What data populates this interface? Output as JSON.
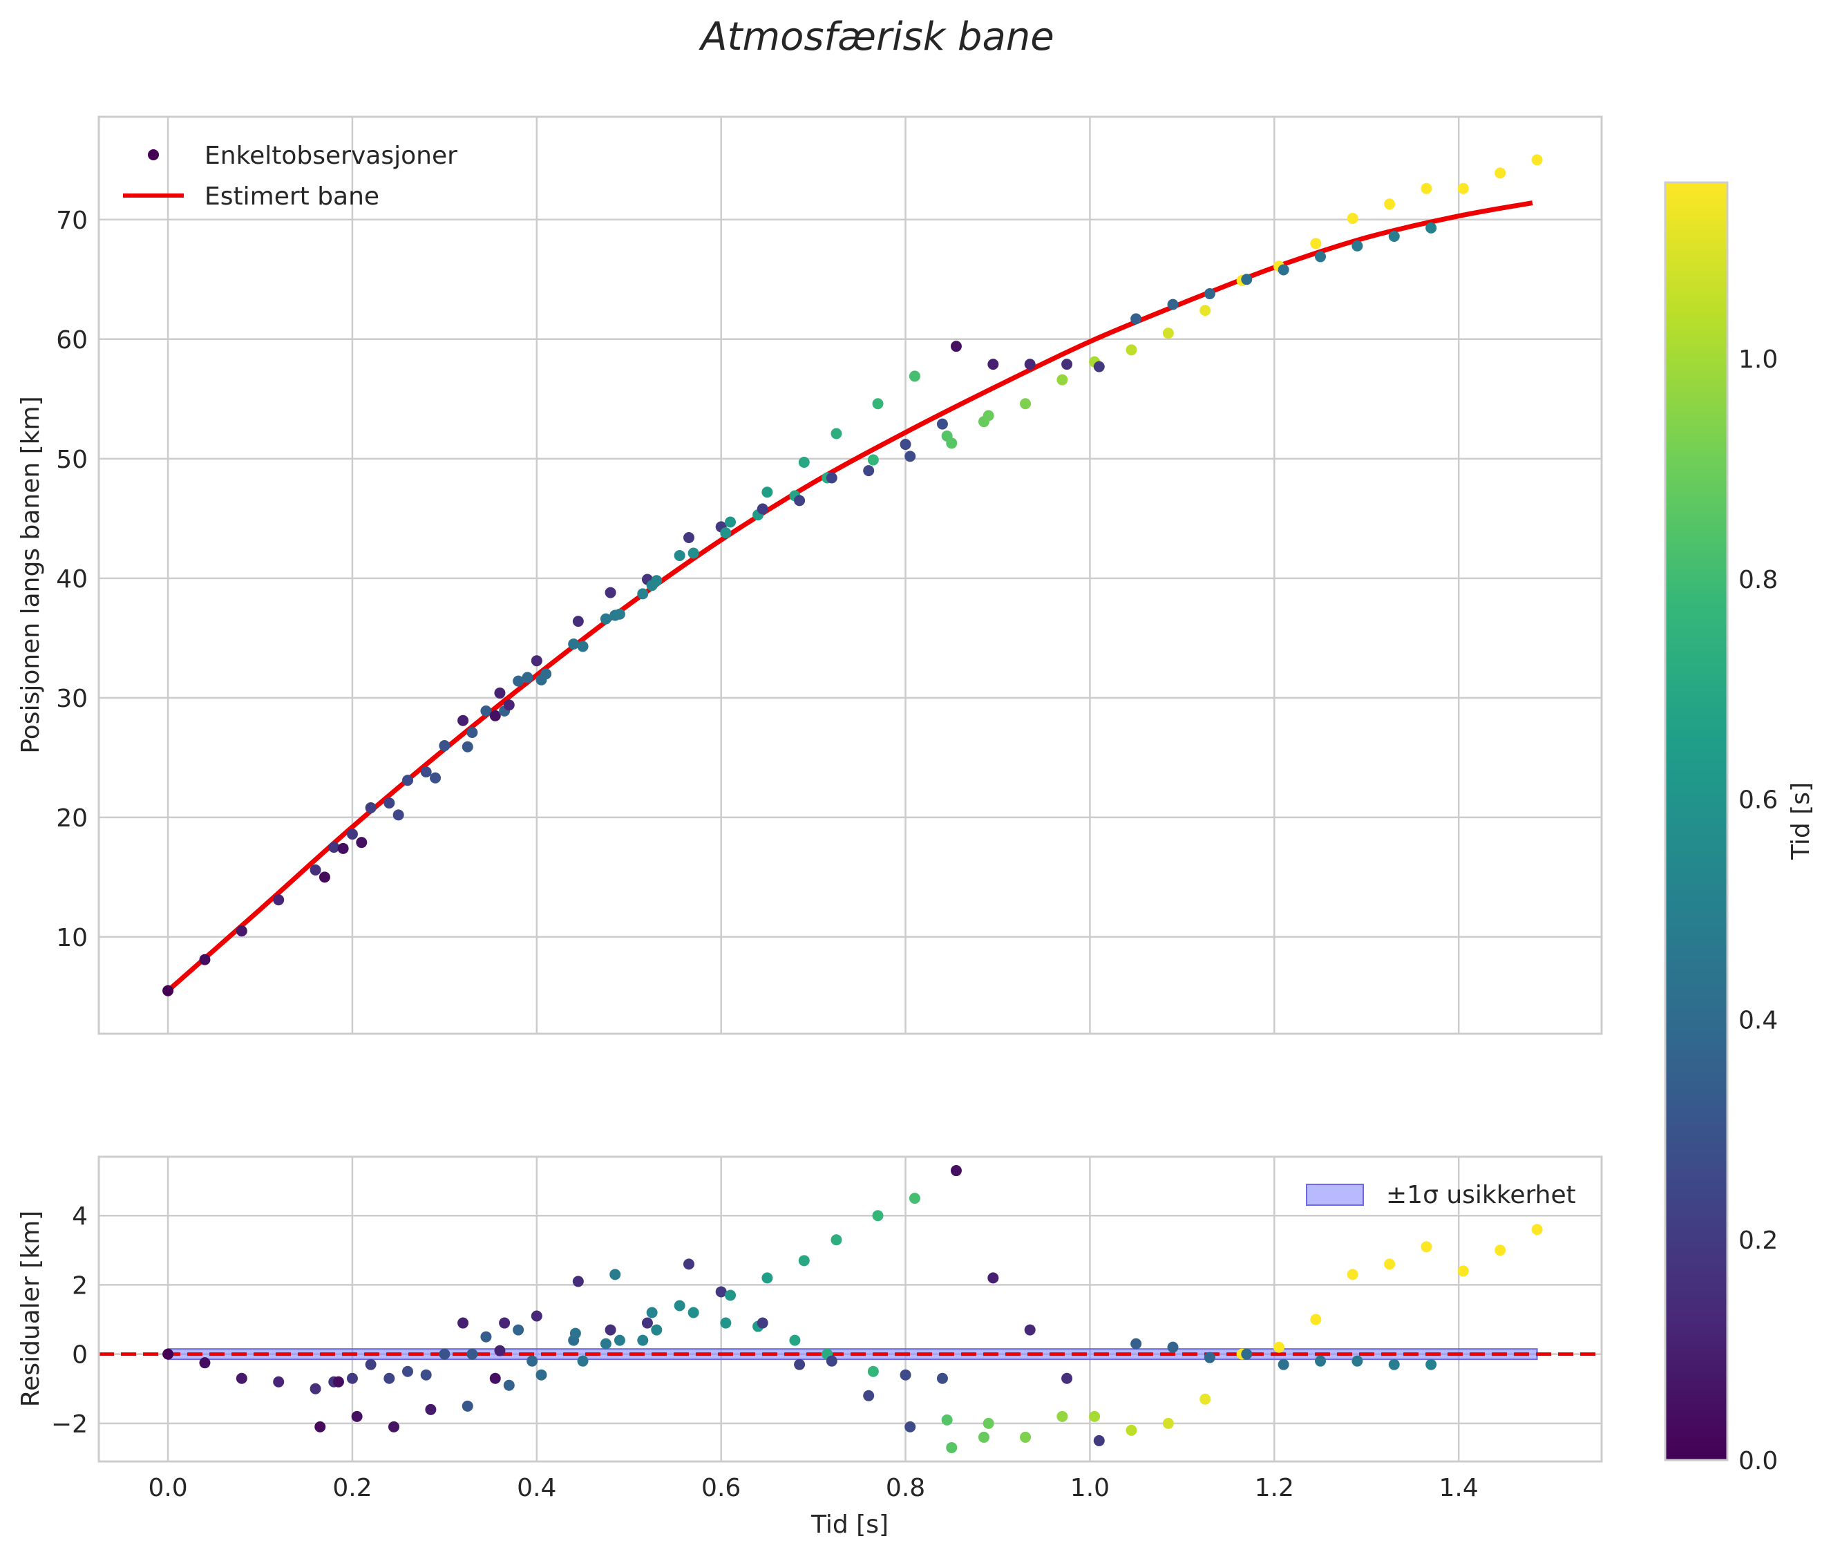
{
  "chart_data": [
    {
      "type": "scatter",
      "title": "Atmosfærisk bane",
      "xlabel": "",
      "ylabel": "Posisjonen langs banen [km]",
      "xlim": [
        -0.075,
        1.555
      ],
      "ylim": [
        1.9,
        78.6
      ],
      "xticks": [
        0.0,
        0.2,
        0.4,
        0.6,
        0.8,
        1.0,
        1.2,
        1.4
      ],
      "yticks": [
        10,
        20,
        30,
        40,
        50,
        60,
        70
      ],
      "ytick_labels": [
        "10",
        "20",
        "30",
        "40",
        "50",
        "60",
        "70"
      ],
      "legend": {
        "position": "top-left",
        "entries": [
          "Enkeltobservasjoner",
          "Estimert bane"
        ]
      },
      "fit_curve": {
        "name": "Estimert bane",
        "color": "#ee0000",
        "x": [
          0.0,
          0.1,
          0.2,
          0.3,
          0.4,
          0.5,
          0.6,
          0.7,
          0.8,
          0.9,
          1.0,
          1.1,
          1.2,
          1.3,
          1.4,
          1.48
        ],
        "y": [
          5.5,
          12.3,
          19.2,
          25.7,
          31.9,
          37.8,
          43.2,
          48.0,
          52.2,
          56.1,
          59.8,
          63.0,
          66.0,
          68.5,
          70.3,
          71.4
        ]
      },
      "observations": {
        "name": "Enkeltobservasjoner",
        "x": [
          0.0,
          0.04,
          0.08,
          0.12,
          0.16,
          0.17,
          0.18,
          0.19,
          0.2,
          0.21,
          0.22,
          0.24,
          0.25,
          0.26,
          0.28,
          0.29,
          0.3,
          0.32,
          0.325,
          0.33,
          0.345,
          0.355,
          0.36,
          0.365,
          0.37,
          0.38,
          0.39,
          0.4,
          0.405,
          0.41,
          0.44,
          0.445,
          0.45,
          0.475,
          0.48,
          0.485,
          0.49,
          0.515,
          0.52,
          0.525,
          0.53,
          0.555,
          0.565,
          0.57,
          0.6,
          0.605,
          0.61,
          0.64,
          0.645,
          0.65,
          0.68,
          0.685,
          0.69,
          0.715,
          0.72,
          0.725,
          0.76,
          0.765,
          0.77,
          0.8,
          0.805,
          0.81,
          0.84,
          0.845,
          0.85,
          0.855,
          0.885,
          0.89,
          0.895,
          0.93,
          0.935,
          0.97,
          0.975,
          1.005,
          1.01,
          1.045,
          1.05,
          1.085,
          1.09,
          1.125,
          1.13,
          1.165,
          1.17,
          1.205,
          1.21,
          1.245,
          1.25,
          1.285,
          1.29,
          1.325,
          1.33,
          1.365,
          1.37,
          1.405,
          1.445,
          1.485
        ],
        "y": [
          5.5,
          8.1,
          10.5,
          13.1,
          15.6,
          15.0,
          17.5,
          17.4,
          18.6,
          17.9,
          20.8,
          21.2,
          20.2,
          23.1,
          23.8,
          23.3,
          26.0,
          28.1,
          25.9,
          27.1,
          28.9,
          28.5,
          30.4,
          28.9,
          29.4,
          31.4,
          31.7,
          33.1,
          31.5,
          32.0,
          34.5,
          36.4,
          34.3,
          36.6,
          38.8,
          36.9,
          37.0,
          38.7,
          39.9,
          39.4,
          39.8,
          41.9,
          43.4,
          42.1,
          44.3,
          43.8,
          44.7,
          45.3,
          45.8,
          47.2,
          46.9,
          46.5,
          49.7,
          48.4,
          48.4,
          52.1,
          49.0,
          49.9,
          54.6,
          51.2,
          50.2,
          56.9,
          52.9,
          51.9,
          51.3,
          59.4,
          53.1,
          53.6,
          57.9,
          54.6,
          57.9,
          56.6,
          57.9,
          58.1,
          57.7,
          59.1,
          61.7,
          60.5,
          62.9,
          62.4,
          63.8,
          64.9,
          65.0,
          66.1,
          65.8,
          68.0,
          66.9,
          70.1,
          67.8,
          71.3,
          68.6,
          72.6,
          69.3,
          72.6,
          73.9,
          75.0
        ],
        "c": [
          0.0,
          0.04,
          0.08,
          0.12,
          0.16,
          0.03,
          0.18,
          0.04,
          0.2,
          0.05,
          0.22,
          0.24,
          0.25,
          0.26,
          0.28,
          0.29,
          0.3,
          0.1,
          0.32,
          0.33,
          0.345,
          0.05,
          0.11,
          0.365,
          0.12,
          0.38,
          0.39,
          0.13,
          0.405,
          0.41,
          0.44,
          0.15,
          0.45,
          0.475,
          0.16,
          0.485,
          0.49,
          0.515,
          0.17,
          0.525,
          0.53,
          0.555,
          0.19,
          0.57,
          0.2,
          0.605,
          0.61,
          0.64,
          0.21,
          0.65,
          0.68,
          0.23,
          0.69,
          0.715,
          0.24,
          0.725,
          0.25,
          0.765,
          0.77,
          0.26,
          0.27,
          0.81,
          0.28,
          0.845,
          0.85,
          0.05,
          0.885,
          0.89,
          0.1,
          0.93,
          0.13,
          0.97,
          0.16,
          1.005,
          0.2,
          1.045,
          0.35,
          1.085,
          0.37,
          1.125,
          0.39,
          1.165,
          0.41,
          1.205,
          0.43,
          1.245,
          0.45,
          1.285,
          0.47,
          1.325,
          0.49,
          1.365,
          0.51,
          1.405,
          1.445,
          1.16
        ]
      }
    },
    {
      "type": "scatter",
      "title": "",
      "xlabel": "Tid [s]",
      "ylabel": "Residualer [km]",
      "xlim": [
        -0.075,
        1.555
      ],
      "ylim": [
        -3.1,
        5.7
      ],
      "xticks": [
        0.0,
        0.2,
        0.4,
        0.6,
        0.8,
        1.0,
        1.2,
        1.4
      ],
      "xtick_labels": [
        "0.0",
        "0.2",
        "0.4",
        "0.6",
        "0.8",
        "1.0",
        "1.2",
        "1.4"
      ],
      "yticks": [
        -2,
        0,
        2,
        4
      ],
      "ytick_labels": [
        "−2",
        "0",
        "2",
        "4"
      ],
      "legend": {
        "position": "top-right",
        "entries": [
          "±1σ usikkerhet"
        ]
      },
      "zero_line": {
        "y": 0,
        "color": "#ee0000",
        "style": "dashed"
      },
      "uncertainty_band": {
        "name": "±1σ usikkerhet",
        "sigma": 0.15,
        "color": "#8080ff"
      },
      "residuals": {
        "x": [
          0.0,
          0.04,
          0.08,
          0.12,
          0.16,
          0.165,
          0.18,
          0.185,
          0.2,
          0.205,
          0.22,
          0.24,
          0.245,
          0.26,
          0.28,
          0.285,
          0.3,
          0.32,
          0.325,
          0.33,
          0.345,
          0.355,
          0.36,
          0.365,
          0.37,
          0.38,
          0.395,
          0.4,
          0.405,
          0.44,
          0.442,
          0.445,
          0.45,
          0.475,
          0.48,
          0.485,
          0.49,
          0.515,
          0.52,
          0.525,
          0.53,
          0.555,
          0.565,
          0.57,
          0.6,
          0.605,
          0.61,
          0.64,
          0.645,
          0.65,
          0.68,
          0.685,
          0.69,
          0.715,
          0.72,
          0.725,
          0.76,
          0.765,
          0.77,
          0.8,
          0.805,
          0.81,
          0.84,
          0.845,
          0.85,
          0.855,
          0.885,
          0.89,
          0.895,
          0.93,
          0.935,
          0.97,
          0.975,
          1.005,
          1.01,
          1.045,
          1.05,
          1.085,
          1.09,
          1.125,
          1.13,
          1.165,
          1.17,
          1.205,
          1.21,
          1.245,
          1.25,
          1.285,
          1.29,
          1.325,
          1.33,
          1.365,
          1.37,
          1.405,
          1.445,
          1.485
        ],
        "y": [
          0.0,
          -0.25,
          -0.7,
          -0.8,
          -1.0,
          -2.1,
          -0.8,
          -0.8,
          -0.7,
          -1.8,
          -0.3,
          -0.7,
          -2.1,
          -0.5,
          -0.6,
          -1.6,
          0.0,
          0.9,
          -1.5,
          0.0,
          0.5,
          -0.7,
          0.1,
          0.9,
          -0.9,
          0.7,
          -0.2,
          1.1,
          -0.6,
          0.4,
          0.6,
          2.1,
          -0.2,
          0.3,
          0.7,
          2.3,
          0.4,
          0.4,
          0.9,
          1.2,
          0.7,
          1.4,
          2.6,
          1.2,
          1.8,
          0.9,
          1.7,
          0.8,
          0.9,
          2.2,
          0.4,
          -0.3,
          2.7,
          0.0,
          -0.2,
          3.3,
          -1.2,
          -0.5,
          4.0,
          -0.6,
          -2.1,
          4.5,
          -0.7,
          -1.9,
          -2.7,
          5.3,
          -2.4,
          -2.0,
          2.2,
          -2.4,
          0.7,
          -1.8,
          -0.7,
          -1.8,
          -2.5,
          -2.2,
          0.3,
          -2.0,
          0.2,
          -1.3,
          -0.1,
          0.0,
          0.0,
          0.2,
          -0.3,
          1.0,
          -0.2,
          2.3,
          -0.2,
          2.6,
          -0.3,
          3.1,
          -0.3,
          2.4,
          3.0,
          3.6
        ],
        "c": [
          0.0,
          0.04,
          0.08,
          0.12,
          0.16,
          0.03,
          0.18,
          0.04,
          0.2,
          0.05,
          0.22,
          0.24,
          0.06,
          0.26,
          0.28,
          0.08,
          0.3,
          0.1,
          0.32,
          0.33,
          0.345,
          0.05,
          0.11,
          0.12,
          0.365,
          0.38,
          0.39,
          0.13,
          0.405,
          0.41,
          0.44,
          0.15,
          0.45,
          0.475,
          0.16,
          0.485,
          0.49,
          0.515,
          0.17,
          0.525,
          0.53,
          0.555,
          0.19,
          0.57,
          0.2,
          0.605,
          0.61,
          0.64,
          0.21,
          0.65,
          0.68,
          0.23,
          0.69,
          0.715,
          0.24,
          0.725,
          0.25,
          0.765,
          0.77,
          0.26,
          0.27,
          0.81,
          0.28,
          0.845,
          0.85,
          0.05,
          0.885,
          0.89,
          0.1,
          0.93,
          0.13,
          0.97,
          0.16,
          1.005,
          0.2,
          1.045,
          0.35,
          1.085,
          0.37,
          1.125,
          0.39,
          1.165,
          0.41,
          1.205,
          0.43,
          1.245,
          0.45,
          1.285,
          0.47,
          1.325,
          0.49,
          1.365,
          0.51,
          1.405,
          1.445,
          1.16
        ]
      }
    }
  ],
  "colorbar": {
    "label": "Tid [s]",
    "range": [
      0.0,
      1.16
    ],
    "colormap": "viridis",
    "ticks": [
      0.0,
      0.2,
      0.4,
      0.6,
      0.8,
      1.0
    ],
    "tick_labels": [
      "0.0",
      "0.2",
      "0.4",
      "0.6",
      "0.8",
      "1.0"
    ]
  },
  "colors": {
    "fit_line": "#ee0000",
    "band_fill": "#8080ff",
    "grid": "#cccccc",
    "text": "#262626",
    "viridis": [
      "#440154",
      "#482878",
      "#3e4989",
      "#31688e",
      "#26828e",
      "#1f9e89",
      "#35b779",
      "#6ece58",
      "#b5de2b",
      "#fde725"
    ]
  }
}
